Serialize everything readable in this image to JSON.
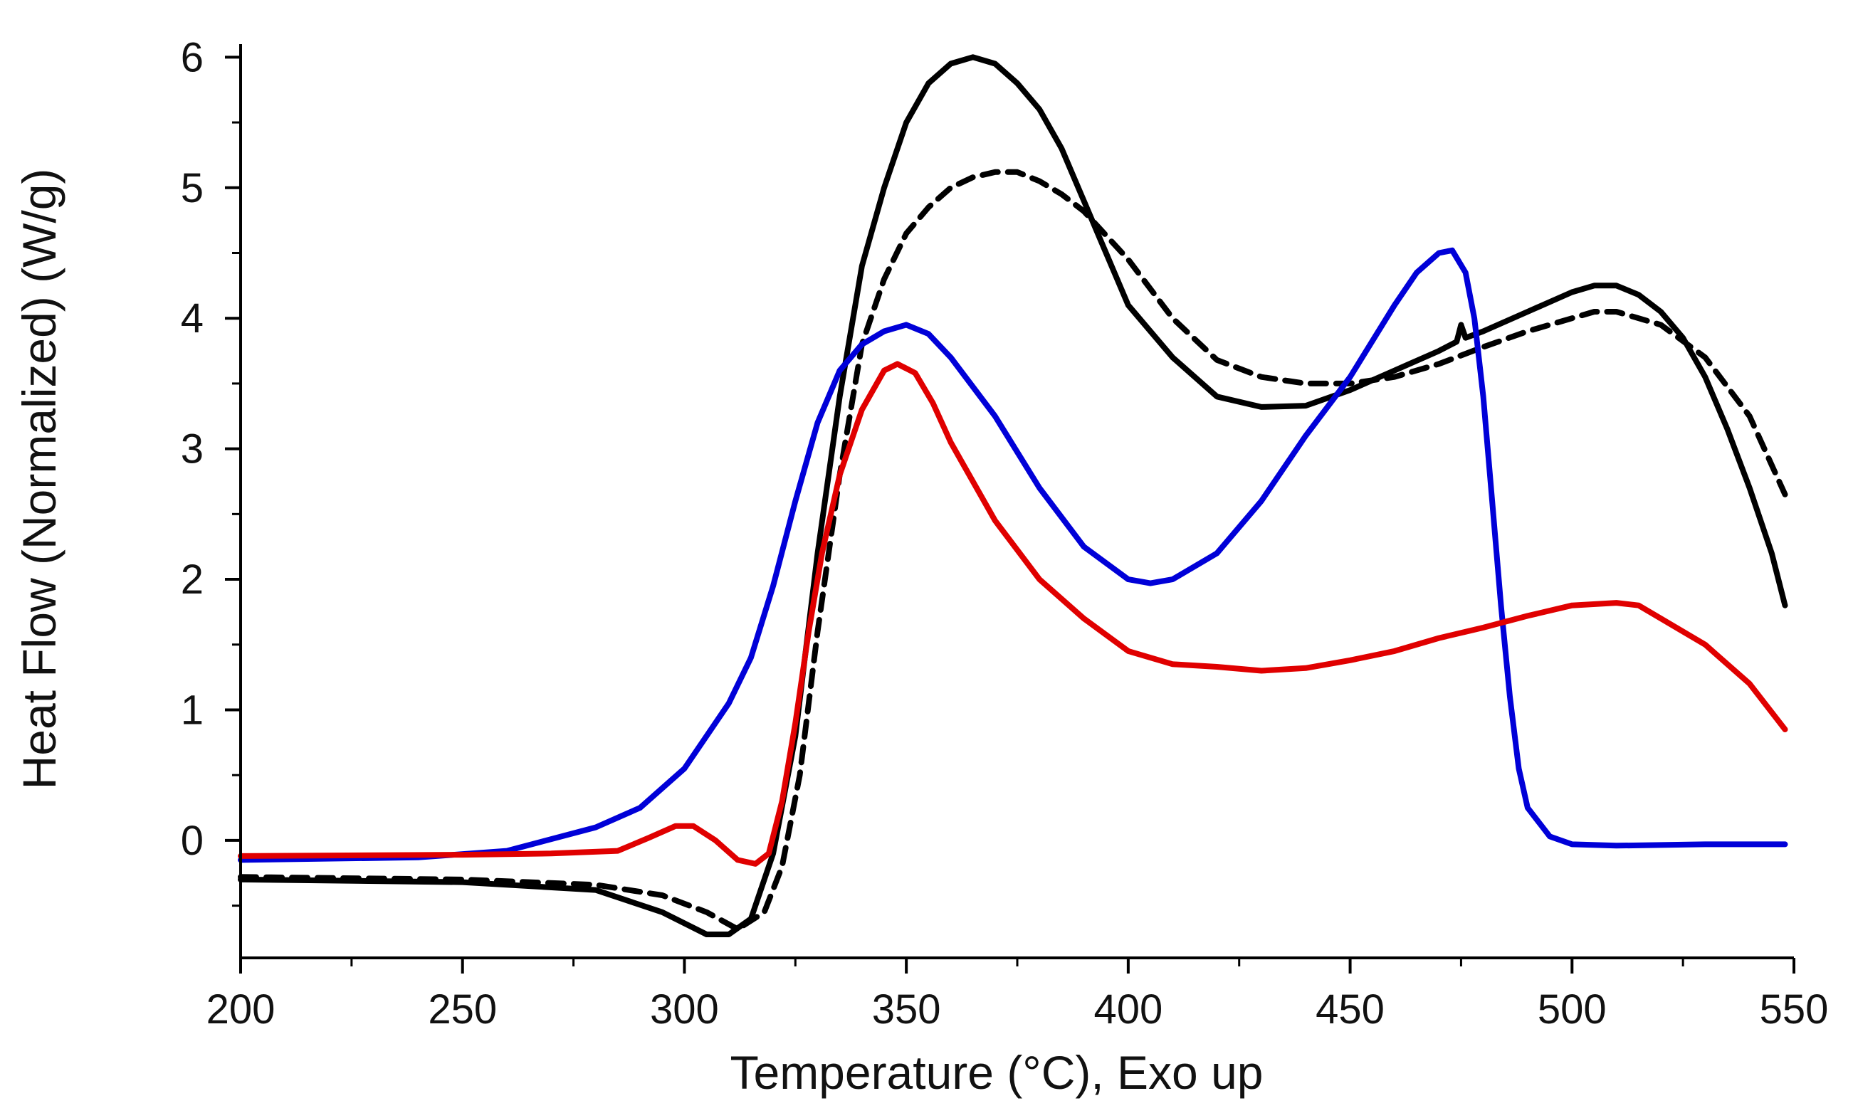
{
  "chart_data": {
    "type": "line",
    "title": "",
    "xlabel": "Temperature (°C), Exo up",
    "ylabel": "Heat Flow (Normalized) (W/g)",
    "xlim": [
      200,
      550
    ],
    "ylim": [
      -0.9,
      6.1
    ],
    "xticks": [
      200,
      250,
      300,
      350,
      400,
      450,
      500,
      550
    ],
    "xtick_labels": [
      "200",
      "250",
      "300",
      "350",
      "400",
      "450",
      "500",
      "550"
    ],
    "yticks": [
      0,
      1,
      2,
      3,
      4,
      5,
      6
    ],
    "ytick_labels": [
      "0",
      "1",
      "2",
      "3",
      "4",
      "5",
      "6"
    ],
    "grid": false,
    "legend": "none",
    "series": [
      {
        "name": "black-solid",
        "color": "#000000",
        "style": "solid",
        "points": [
          [
            200,
            -0.3
          ],
          [
            250,
            -0.32
          ],
          [
            280,
            -0.38
          ],
          [
            295,
            -0.55
          ],
          [
            305,
            -0.72
          ],
          [
            310,
            -0.72
          ],
          [
            315,
            -0.6
          ],
          [
            320,
            -0.1
          ],
          [
            325,
            0.8
          ],
          [
            330,
            2.2
          ],
          [
            335,
            3.4
          ],
          [
            340,
            4.4
          ],
          [
            345,
            5.0
          ],
          [
            350,
            5.5
          ],
          [
            355,
            5.8
          ],
          [
            360,
            5.95
          ],
          [
            365,
            6.0
          ],
          [
            370,
            5.95
          ],
          [
            375,
            5.8
          ],
          [
            380,
            5.6
          ],
          [
            385,
            5.3
          ],
          [
            390,
            4.9
          ],
          [
            395,
            4.5
          ],
          [
            400,
            4.1
          ],
          [
            410,
            3.7
          ],
          [
            420,
            3.4
          ],
          [
            430,
            3.32
          ],
          [
            440,
            3.33
          ],
          [
            450,
            3.45
          ],
          [
            460,
            3.6
          ],
          [
            470,
            3.75
          ],
          [
            474,
            3.82
          ],
          [
            475,
            3.95
          ],
          [
            476,
            3.85
          ],
          [
            480,
            3.9
          ],
          [
            490,
            4.05
          ],
          [
            500,
            4.2
          ],
          [
            505,
            4.25
          ],
          [
            510,
            4.25
          ],
          [
            515,
            4.18
          ],
          [
            520,
            4.05
          ],
          [
            525,
            3.85
          ],
          [
            530,
            3.55
          ],
          [
            535,
            3.15
          ],
          [
            540,
            2.7
          ],
          [
            545,
            2.2
          ],
          [
            548,
            1.8
          ]
        ]
      },
      {
        "name": "black-dashed",
        "color": "#000000",
        "style": "dashed",
        "points": [
          [
            200,
            -0.28
          ],
          [
            250,
            -0.3
          ],
          [
            280,
            -0.34
          ],
          [
            295,
            -0.42
          ],
          [
            305,
            -0.55
          ],
          [
            312,
            -0.68
          ],
          [
            318,
            -0.55
          ],
          [
            322,
            -0.2
          ],
          [
            326,
            0.5
          ],
          [
            330,
            1.6
          ],
          [
            335,
            2.8
          ],
          [
            340,
            3.8
          ],
          [
            345,
            4.3
          ],
          [
            350,
            4.65
          ],
          [
            355,
            4.85
          ],
          [
            360,
            5.0
          ],
          [
            365,
            5.08
          ],
          [
            370,
            5.12
          ],
          [
            375,
            5.12
          ],
          [
            380,
            5.05
          ],
          [
            385,
            4.95
          ],
          [
            390,
            4.82
          ],
          [
            400,
            4.45
          ],
          [
            410,
            4.0
          ],
          [
            420,
            3.68
          ],
          [
            430,
            3.55
          ],
          [
            440,
            3.5
          ],
          [
            450,
            3.5
          ],
          [
            460,
            3.55
          ],
          [
            470,
            3.65
          ],
          [
            480,
            3.78
          ],
          [
            490,
            3.9
          ],
          [
            500,
            4.0
          ],
          [
            505,
            4.05
          ],
          [
            510,
            4.05
          ],
          [
            515,
            4.0
          ],
          [
            520,
            3.95
          ],
          [
            530,
            3.7
          ],
          [
            540,
            3.25
          ],
          [
            548,
            2.65
          ]
        ]
      },
      {
        "name": "blue",
        "color": "#0000d8",
        "style": "solid",
        "points": [
          [
            200,
            -0.15
          ],
          [
            240,
            -0.13
          ],
          [
            260,
            -0.08
          ],
          [
            280,
            0.1
          ],
          [
            290,
            0.25
          ],
          [
            300,
            0.55
          ],
          [
            310,
            1.05
          ],
          [
            315,
            1.4
          ],
          [
            320,
            1.95
          ],
          [
            325,
            2.6
          ],
          [
            330,
            3.2
          ],
          [
            335,
            3.6
          ],
          [
            340,
            3.8
          ],
          [
            345,
            3.9
          ],
          [
            350,
            3.95
          ],
          [
            355,
            3.88
          ],
          [
            360,
            3.7
          ],
          [
            370,
            3.25
          ],
          [
            380,
            2.7
          ],
          [
            390,
            2.25
          ],
          [
            400,
            2.0
          ],
          [
            405,
            1.97
          ],
          [
            410,
            2.0
          ],
          [
            420,
            2.2
          ],
          [
            430,
            2.6
          ],
          [
            440,
            3.1
          ],
          [
            450,
            3.55
          ],
          [
            460,
            4.1
          ],
          [
            465,
            4.35
          ],
          [
            470,
            4.5
          ],
          [
            473,
            4.52
          ],
          [
            476,
            4.35
          ],
          [
            478,
            4.0
          ],
          [
            480,
            3.4
          ],
          [
            482,
            2.6
          ],
          [
            484,
            1.8
          ],
          [
            486,
            1.1
          ],
          [
            488,
            0.55
          ],
          [
            490,
            0.25
          ],
          [
            495,
            0.03
          ],
          [
            500,
            -0.03
          ],
          [
            510,
            -0.04
          ],
          [
            530,
            -0.03
          ],
          [
            548,
            -0.03
          ]
        ]
      },
      {
        "name": "red",
        "color": "#e00000",
        "style": "solid",
        "points": [
          [
            200,
            -0.12
          ],
          [
            250,
            -0.11
          ],
          [
            270,
            -0.1
          ],
          [
            285,
            -0.08
          ],
          [
            292,
            0.02
          ],
          [
            298,
            0.11
          ],
          [
            302,
            0.11
          ],
          [
            307,
            0.0
          ],
          [
            312,
            -0.15
          ],
          [
            316,
            -0.18
          ],
          [
            319,
            -0.1
          ],
          [
            322,
            0.3
          ],
          [
            325,
            0.9
          ],
          [
            328,
            1.6
          ],
          [
            331,
            2.2
          ],
          [
            335,
            2.8
          ],
          [
            340,
            3.3
          ],
          [
            345,
            3.6
          ],
          [
            348,
            3.65
          ],
          [
            352,
            3.58
          ],
          [
            356,
            3.35
          ],
          [
            360,
            3.05
          ],
          [
            370,
            2.45
          ],
          [
            380,
            2.0
          ],
          [
            390,
            1.7
          ],
          [
            400,
            1.45
          ],
          [
            410,
            1.35
          ],
          [
            420,
            1.33
          ],
          [
            430,
            1.3
          ],
          [
            440,
            1.32
          ],
          [
            450,
            1.38
          ],
          [
            460,
            1.45
          ],
          [
            470,
            1.55
          ],
          [
            480,
            1.63
          ],
          [
            490,
            1.72
          ],
          [
            500,
            1.8
          ],
          [
            510,
            1.82
          ],
          [
            515,
            1.8
          ],
          [
            520,
            1.7
          ],
          [
            530,
            1.5
          ],
          [
            540,
            1.2
          ],
          [
            548,
            0.85
          ]
        ]
      }
    ]
  }
}
